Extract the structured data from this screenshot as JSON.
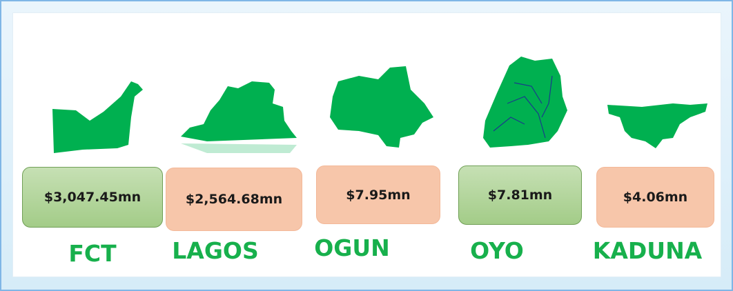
{
  "items": [
    {
      "amount": "$3,047.45mn",
      "name": "FCT"
    },
    {
      "amount": "$2,564.68mn",
      "name": "LAGOS"
    },
    {
      "amount": "$7.95mn",
      "name": "OGUN"
    },
    {
      "amount": "$7.81mn",
      "name": "OYO"
    },
    {
      "amount": "$4.06mn",
      "name": "KADUNA"
    }
  ]
}
